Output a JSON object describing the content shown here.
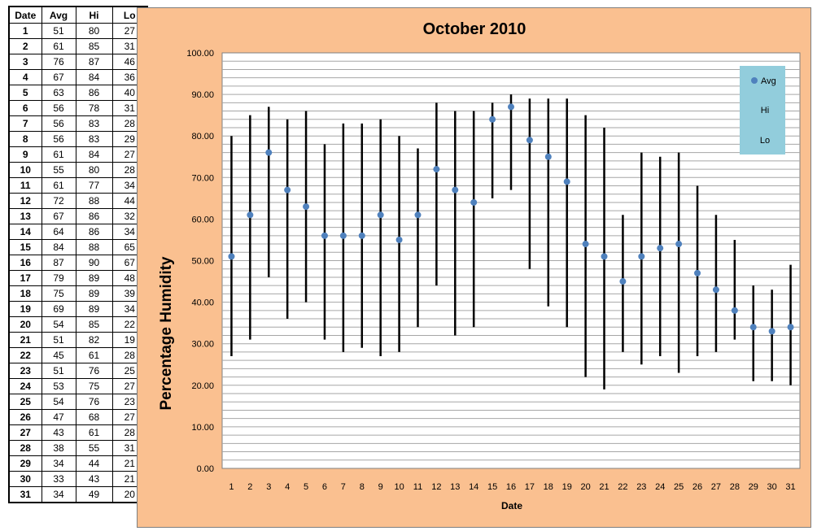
{
  "table": {
    "headers": [
      "Date",
      "Avg",
      "Hi",
      "Lo"
    ],
    "rows": [
      [
        "1",
        "51",
        "80",
        "27"
      ],
      [
        "2",
        "61",
        "85",
        "31"
      ],
      [
        "3",
        "76",
        "87",
        "46"
      ],
      [
        "4",
        "67",
        "84",
        "36"
      ],
      [
        "5",
        "63",
        "86",
        "40"
      ],
      [
        "6",
        "56",
        "78",
        "31"
      ],
      [
        "7",
        "56",
        "83",
        "28"
      ],
      [
        "8",
        "56",
        "83",
        "29"
      ],
      [
        "9",
        "61",
        "84",
        "27"
      ],
      [
        "10",
        "55",
        "80",
        "28"
      ],
      [
        "11",
        "61",
        "77",
        "34"
      ],
      [
        "12",
        "72",
        "88",
        "44"
      ],
      [
        "13",
        "67",
        "86",
        "32"
      ],
      [
        "14",
        "64",
        "86",
        "34"
      ],
      [
        "15",
        "84",
        "88",
        "65"
      ],
      [
        "16",
        "87",
        "90",
        "67"
      ],
      [
        "17",
        "79",
        "89",
        "48"
      ],
      [
        "18",
        "75",
        "89",
        "39"
      ],
      [
        "19",
        "69",
        "89",
        "34"
      ],
      [
        "20",
        "54",
        "85",
        "22"
      ],
      [
        "21",
        "51",
        "82",
        "19"
      ],
      [
        "22",
        "45",
        "61",
        "28"
      ],
      [
        "23",
        "51",
        "76",
        "25"
      ],
      [
        "24",
        "53",
        "75",
        "27"
      ],
      [
        "25",
        "54",
        "76",
        "23"
      ],
      [
        "26",
        "47",
        "68",
        "27"
      ],
      [
        "27",
        "43",
        "61",
        "28"
      ],
      [
        "28",
        "38",
        "55",
        "31"
      ],
      [
        "29",
        "34",
        "44",
        "21"
      ],
      [
        "30",
        "33",
        "43",
        "21"
      ],
      [
        "31",
        "34",
        "49",
        "20"
      ]
    ]
  },
  "chart_data": {
    "type": "scatter",
    "title": "October 2010",
    "xlabel": "Date",
    "ylabel": "Percentage Humidity",
    "ylim": [
      0,
      100
    ],
    "y_tick_step": 10,
    "y_tick_labels": [
      "0.00",
      "10.00",
      "20.00",
      "30.00",
      "40.00",
      "50.00",
      "60.00",
      "70.00",
      "80.00",
      "90.00",
      "100.00"
    ],
    "categories": [
      "1",
      "2",
      "3",
      "4",
      "5",
      "6",
      "7",
      "8",
      "9",
      "10",
      "11",
      "12",
      "13",
      "14",
      "15",
      "16",
      "17",
      "18",
      "19",
      "20",
      "21",
      "22",
      "23",
      "24",
      "25",
      "26",
      "27",
      "28",
      "29",
      "30",
      "31"
    ],
    "series": [
      {
        "name": "Avg",
        "values": [
          51,
          61,
          76,
          67,
          63,
          56,
          56,
          56,
          61,
          55,
          61,
          72,
          67,
          64,
          84,
          87,
          79,
          75,
          69,
          54,
          51,
          45,
          51,
          53,
          54,
          47,
          43,
          38,
          34,
          33,
          34
        ]
      },
      {
        "name": "Hi",
        "values": [
          80,
          85,
          87,
          84,
          86,
          78,
          83,
          83,
          84,
          80,
          77,
          88,
          86,
          86,
          88,
          90,
          89,
          89,
          89,
          85,
          82,
          61,
          76,
          75,
          76,
          68,
          61,
          55,
          44,
          43,
          49
        ]
      },
      {
        "name": "Lo",
        "values": [
          27,
          31,
          46,
          36,
          40,
          31,
          28,
          29,
          27,
          28,
          34,
          44,
          32,
          34,
          65,
          67,
          48,
          39,
          34,
          22,
          19,
          28,
          25,
          27,
          23,
          27,
          28,
          31,
          21,
          21,
          20
        ]
      }
    ],
    "legend": {
      "position": "top-right",
      "entries": [
        "Avg",
        "Hi",
        "Lo"
      ]
    },
    "grid": true,
    "colors": {
      "background": "#fac090",
      "plot_area": "#ffffff",
      "marker": "#4f81bd",
      "bar": "#000000",
      "legend_bg": "#92cddc",
      "gridline": "#a6a6a6"
    }
  }
}
